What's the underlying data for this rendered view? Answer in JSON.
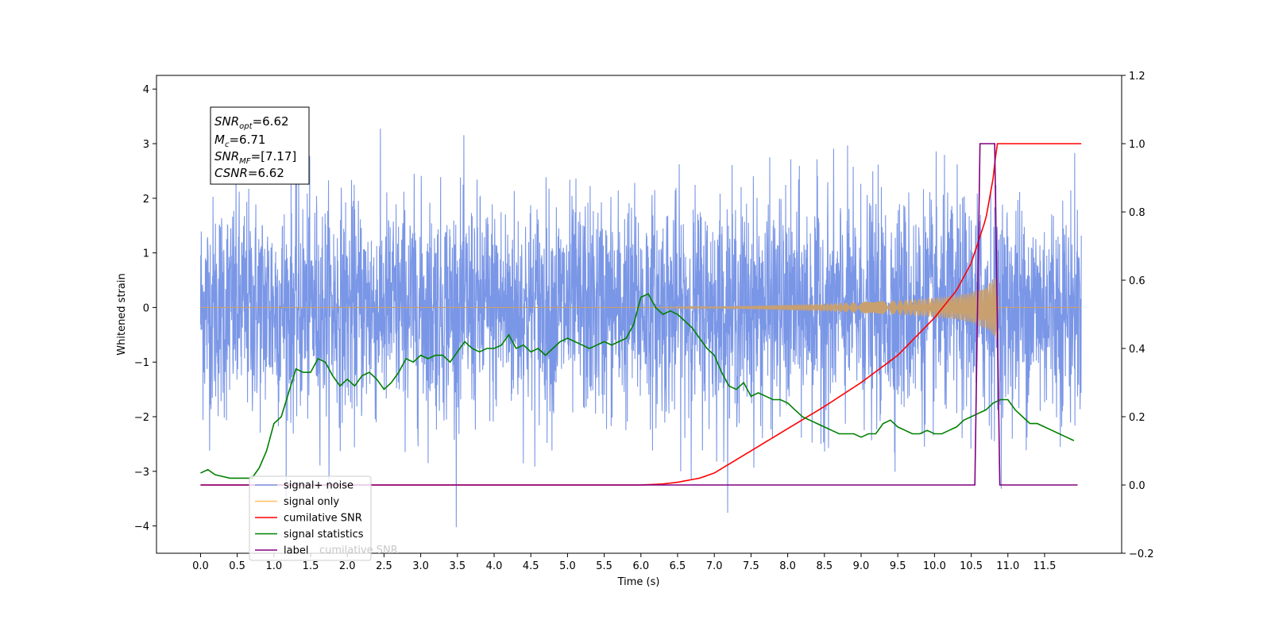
{
  "chart_data": {
    "type": "line",
    "xlabel": "Time (s)",
    "ylabel": "Whitened strain",
    "xlim": [
      -0.6,
      12.55
    ],
    "ylim_left": [
      -4.5,
      4.25
    ],
    "ylim_right": [
      -0.2,
      1.2
    ],
    "x_ticks": [
      0.0,
      0.5,
      1.0,
      1.5,
      2.0,
      2.5,
      3.0,
      3.5,
      4.0,
      4.5,
      5.0,
      5.5,
      6.0,
      6.5,
      7.0,
      7.5,
      8.0,
      8.5,
      9.0,
      9.5,
      10.0,
      10.5,
      11.0,
      11.5
    ],
    "x_tick_labels": [
      "0.0",
      "0.5",
      "1.0",
      "1.5",
      "2.0",
      "2.5",
      "3.0",
      "3.5",
      "4.0",
      "4.5",
      "5.0",
      "5.5",
      "6.0",
      "6.5",
      "7.0",
      "7.5",
      "8.0",
      "8.5",
      "9.0",
      "9.5",
      "10.0",
      "10.5",
      "11.0",
      "11.5"
    ],
    "y_left_ticks": [
      -4,
      -3,
      -2,
      -1,
      0,
      1,
      2,
      3,
      4
    ],
    "y_left_tick_labels": [
      "−4",
      "−3",
      "−2",
      "−1",
      "0",
      "1",
      "2",
      "3",
      "4"
    ],
    "y_right_ticks": [
      -0.2,
      0.0,
      0.2,
      0.4,
      0.6,
      0.8,
      1.0,
      1.2
    ],
    "y_right_tick_labels": [
      "−0.2",
      "0.0",
      "0.2",
      "0.4",
      "0.6",
      "0.8",
      "1.0",
      "1.2"
    ],
    "grid": false,
    "legend_position": "lower-left",
    "annotation": {
      "snr_opt": "6.62",
      "mc": "6.71",
      "snr_mf": "[7.17]",
      "csnr": "6.62"
    },
    "series": [
      {
        "name": "signal+ noise",
        "axis": "left",
        "color": "#7a96e6",
        "x_range": [
          0.0,
          12.0
        ],
        "typical_band": [
          -2.0,
          2.0
        ],
        "extreme_range": [
          -4.1,
          3.85
        ]
      },
      {
        "name": "signal only",
        "axis": "left",
        "color": "#c8a070",
        "x": [
          0.0,
          6.0,
          6.5,
          7.0,
          7.5,
          8.0,
          8.5,
          9.0,
          9.5,
          10.0,
          10.3,
          10.5,
          10.7,
          10.85,
          10.87,
          12.0
        ],
        "envelope": [
          0.0,
          0.0,
          0.005,
          0.015,
          0.03,
          0.05,
          0.07,
          0.1,
          0.13,
          0.18,
          0.22,
          0.28,
          0.38,
          0.58,
          0.0,
          0.0
        ]
      },
      {
        "name": "cumilative SNR",
        "axis": "right",
        "color": "#ff0000",
        "x": [
          0.0,
          6.0,
          6.3,
          6.5,
          6.8,
          7.0,
          7.5,
          8.0,
          8.5,
          9.0,
          9.5,
          10.0,
          10.3,
          10.5,
          10.7,
          10.8,
          10.85,
          12.0
        ],
        "y": [
          0.0,
          0.0,
          0.003,
          0.008,
          0.02,
          0.035,
          0.1,
          0.165,
          0.23,
          0.3,
          0.38,
          0.49,
          0.57,
          0.65,
          0.78,
          0.9,
          1.0,
          1.0
        ]
      },
      {
        "name": "signal statistics",
        "axis": "right",
        "color": "#008000",
        "x": [
          0.0,
          0.1,
          0.2,
          0.3,
          0.4,
          0.5,
          0.6,
          0.7,
          0.8,
          0.9,
          1.0,
          1.1,
          1.2,
          1.3,
          1.4,
          1.5,
          1.6,
          1.7,
          1.8,
          1.9,
          2.0,
          2.1,
          2.2,
          2.3,
          2.4,
          2.5,
          2.6,
          2.7,
          2.8,
          2.9,
          3.0,
          3.1,
          3.2,
          3.3,
          3.4,
          3.5,
          3.6,
          3.7,
          3.8,
          3.9,
          4.0,
          4.1,
          4.2,
          4.3,
          4.4,
          4.5,
          4.6,
          4.7,
          4.8,
          4.9,
          5.0,
          5.1,
          5.2,
          5.3,
          5.4,
          5.5,
          5.6,
          5.7,
          5.8,
          5.9,
          6.0,
          6.1,
          6.2,
          6.3,
          6.4,
          6.5,
          6.6,
          6.7,
          6.8,
          6.9,
          7.0,
          7.1,
          7.2,
          7.3,
          7.4,
          7.5,
          7.6,
          7.7,
          7.8,
          7.9,
          8.0,
          8.1,
          8.2,
          8.3,
          8.4,
          8.5,
          8.6,
          8.7,
          8.8,
          8.9,
          9.0,
          9.1,
          9.2,
          9.3,
          9.4,
          9.5,
          9.6,
          9.7,
          9.8,
          9.9,
          10.0,
          10.1,
          10.2,
          10.3,
          10.4,
          10.5,
          10.6,
          10.7,
          10.8,
          10.9,
          11.0,
          11.1,
          11.2,
          11.3,
          11.4,
          11.5,
          11.6,
          11.7,
          11.8,
          11.9
        ],
        "y": [
          0.035,
          0.045,
          0.03,
          0.025,
          0.02,
          0.02,
          0.02,
          0.02,
          0.05,
          0.1,
          0.18,
          0.2,
          0.27,
          0.34,
          0.33,
          0.33,
          0.37,
          0.36,
          0.32,
          0.29,
          0.31,
          0.29,
          0.32,
          0.33,
          0.31,
          0.28,
          0.3,
          0.33,
          0.37,
          0.36,
          0.38,
          0.37,
          0.38,
          0.38,
          0.36,
          0.39,
          0.42,
          0.4,
          0.39,
          0.4,
          0.4,
          0.41,
          0.44,
          0.4,
          0.41,
          0.39,
          0.4,
          0.38,
          0.4,
          0.42,
          0.43,
          0.42,
          0.41,
          0.4,
          0.41,
          0.42,
          0.41,
          0.42,
          0.43,
          0.47,
          0.55,
          0.56,
          0.52,
          0.5,
          0.51,
          0.5,
          0.48,
          0.46,
          0.43,
          0.4,
          0.38,
          0.33,
          0.29,
          0.28,
          0.3,
          0.26,
          0.27,
          0.26,
          0.25,
          0.25,
          0.24,
          0.22,
          0.2,
          0.19,
          0.18,
          0.17,
          0.16,
          0.15,
          0.15,
          0.15,
          0.14,
          0.15,
          0.15,
          0.18,
          0.19,
          0.17,
          0.16,
          0.15,
          0.15,
          0.16,
          0.15,
          0.15,
          0.16,
          0.17,
          0.19,
          0.2,
          0.21,
          0.22,
          0.24,
          0.25,
          0.25,
          0.22,
          0.2,
          0.18,
          0.18,
          0.17,
          0.16,
          0.15,
          0.14,
          0.13
        ]
      },
      {
        "name": "label",
        "axis": "right",
        "color": "#800080",
        "x": [
          0.0,
          10.55,
          10.62,
          10.82,
          10.89,
          11.95
        ],
        "y": [
          0.0,
          0.0,
          1.0,
          1.0,
          0.0,
          0.0
        ]
      }
    ],
    "legend": [
      "signal+ noise",
      "signal only",
      "cumilative SNR",
      "signal statistics",
      "label"
    ],
    "legend_hidden_text": "cumilative SNR"
  }
}
